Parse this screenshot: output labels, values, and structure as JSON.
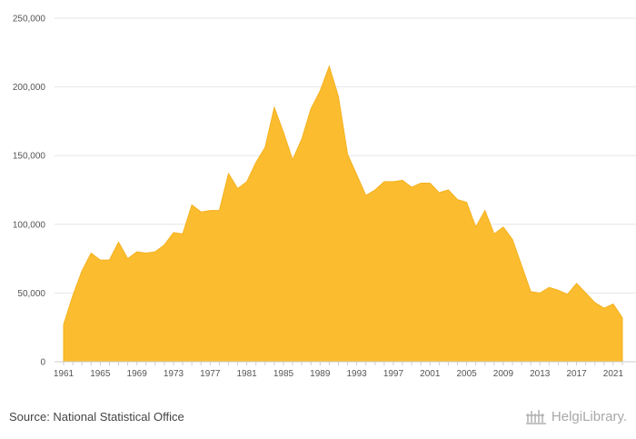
{
  "chart_data": {
    "type": "area",
    "title": "",
    "xlabel": "",
    "ylabel": "",
    "ylim": [
      0,
      250000
    ],
    "yticks": [
      0,
      50000,
      100000,
      150000,
      200000,
      250000
    ],
    "ytick_labels": [
      "0",
      "50,000",
      "100,000",
      "150,000",
      "200,000",
      "250,000"
    ],
    "xticks": [
      1961,
      1965,
      1969,
      1973,
      1977,
      1981,
      1985,
      1989,
      1993,
      1997,
      2001,
      2005,
      2009,
      2013,
      2017,
      2021
    ],
    "grid": true,
    "fill_color": "#FBBD2F",
    "x": [
      1961,
      1962,
      1963,
      1964,
      1965,
      1966,
      1967,
      1968,
      1969,
      1970,
      1971,
      1972,
      1973,
      1974,
      1975,
      1976,
      1977,
      1978,
      1979,
      1980,
      1981,
      1982,
      1983,
      1984,
      1985,
      1986,
      1987,
      1988,
      1989,
      1990,
      1991,
      1992,
      1993,
      1994,
      1995,
      1996,
      1997,
      1998,
      1999,
      2000,
      2001,
      2002,
      2003,
      2004,
      2005,
      2006,
      2007,
      2008,
      2009,
      2010,
      2011,
      2012,
      2013,
      2014,
      2015,
      2016,
      2017,
      2018,
      2019,
      2020,
      2021,
      2022
    ],
    "values": [
      27000,
      48000,
      66000,
      79000,
      74000,
      74000,
      87000,
      75000,
      80000,
      79000,
      80000,
      85000,
      94000,
      93000,
      114000,
      109000,
      110000,
      110000,
      137000,
      126000,
      131000,
      145000,
      156000,
      185000,
      167000,
      147000,
      162000,
      184000,
      197000,
      215000,
      193000,
      151000,
      136000,
      121000,
      125000,
      131000,
      131000,
      132000,
      127000,
      130000,
      130000,
      123000,
      125000,
      118000,
      116000,
      98000,
      110000,
      93000,
      98000,
      89000,
      70000,
      51000,
      50000,
      54000,
      52000,
      49000,
      57000,
      50000,
      43000,
      39000,
      42000,
      32000
    ]
  },
  "footer": {
    "source": "Source: National Statistical Office",
    "brand": "HelgiLibrary."
  }
}
